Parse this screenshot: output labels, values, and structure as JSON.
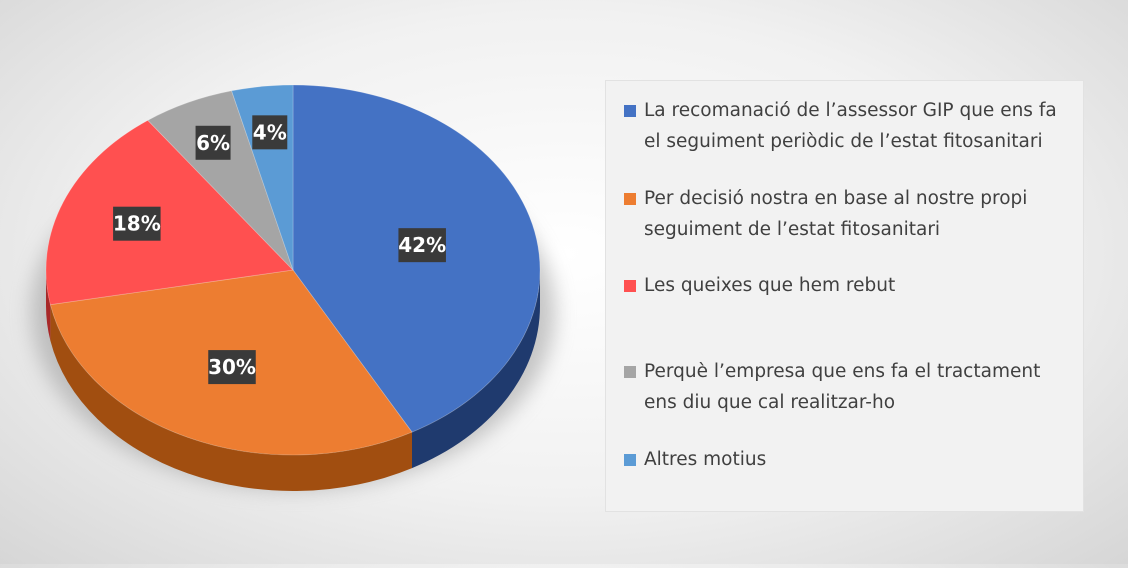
{
  "chart_data": {
    "type": "pie",
    "style": "3d",
    "labels": [
      "La recomanació de l’assessor GIP que ens fa el seguiment periòdic de l’estat fitosanitari",
      "Per decisió nostra en base al nostre propi seguiment de l’estat fitosanitari",
      "Les queixes que hem rebut",
      "Perquè l’empresa que ens fa el tractament ens diu que cal realitzar-ho",
      "Altres motius"
    ],
    "values": [
      42,
      30,
      18,
      6,
      4
    ],
    "data_labels": [
      "42%",
      "30%",
      "18%",
      "6%",
      "4%"
    ],
    "colors": [
      "#4472c4",
      "#ed7d31",
      "#ff5050",
      "#a5a5a5",
      "#5b9bd5"
    ],
    "side_colors": [
      "#1f3a6e",
      "#a14e10",
      "#a82828",
      "#6e6e6e",
      "#2f6aa0"
    ],
    "legend_position": "right"
  }
}
